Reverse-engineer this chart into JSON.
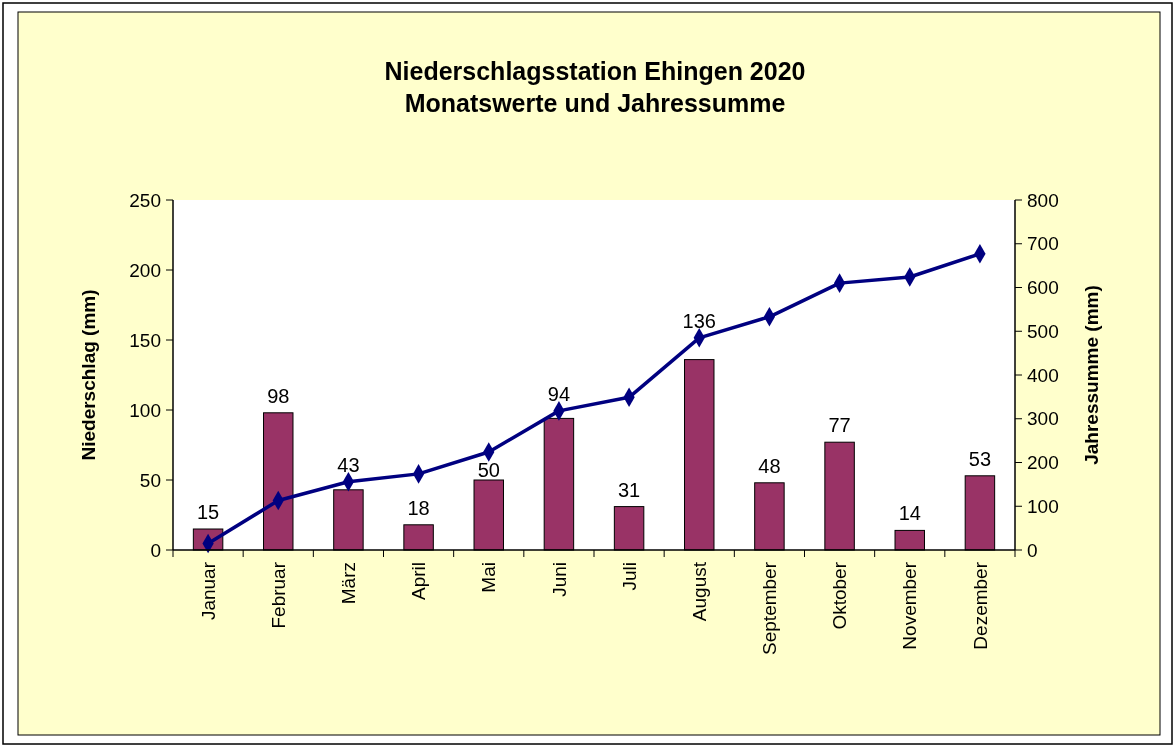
{
  "chart_data": {
    "type": "bar",
    "title": "Niederschlagsstation Ehingen 2020",
    "subtitle": "Monatswerte und Jahressumme",
    "ylabel": "Niederschlag (mm)",
    "y2label": "Jahressumme (mm)",
    "categories": [
      "Januar",
      "Februar",
      "März",
      "April",
      "Mai",
      "Juni",
      "Juli",
      "August",
      "September",
      "Oktober",
      "November",
      "Dezember"
    ],
    "series": [
      {
        "color": "#993366",
        "values": [
          15,
          98,
          43,
          18,
          50,
          94,
          31,
          136,
          48,
          77,
          14,
          53
        ],
        "value_labels": [
          "15",
          "98",
          "43",
          "18",
          "50",
          "94",
          "31",
          "136",
          "48",
          "77",
          "14",
          "53"
        ]
      },
      {
        "type": "line",
        "axis": "y2",
        "color": "#000080",
        "marker": "diamond",
        "values": [
          15,
          113,
          156,
          174,
          224,
          318,
          349,
          485,
          533,
          610,
          624,
          677
        ]
      }
    ],
    "ylim": [
      0,
      250
    ],
    "yticks": [
      0,
      50,
      100,
      150,
      200,
      250
    ],
    "y2lim": [
      0,
      800
    ],
    "y2ticks": [
      0,
      100,
      200,
      300,
      400,
      500,
      600,
      700,
      800
    ],
    "grid": false
  }
}
